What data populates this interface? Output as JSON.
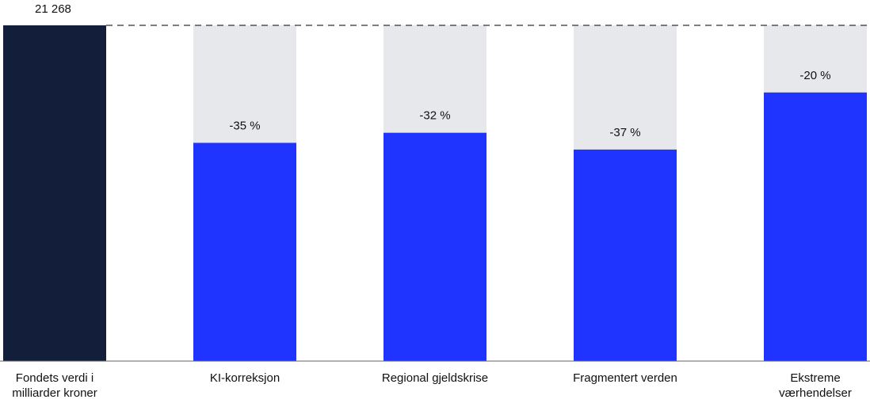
{
  "chart_data": {
    "type": "bar",
    "fund_label": "Fondets verdi i milliarder kroner",
    "fund_value": 21268,
    "fund_value_label": "21 268",
    "fund_color": "#131f3a",
    "categories": [
      "KI-korreksjon",
      "Regional gjeldskrise",
      "Fragmentert verden",
      "Ekstreme værhendelser"
    ],
    "changes": [
      -35,
      -32,
      -37,
      -20
    ],
    "value_labels": [
      "-35 %",
      "-32 %",
      "-37 %",
      "-20 %"
    ],
    "color": "#1f35ff",
    "remainder_color": "#e7e8eb"
  }
}
